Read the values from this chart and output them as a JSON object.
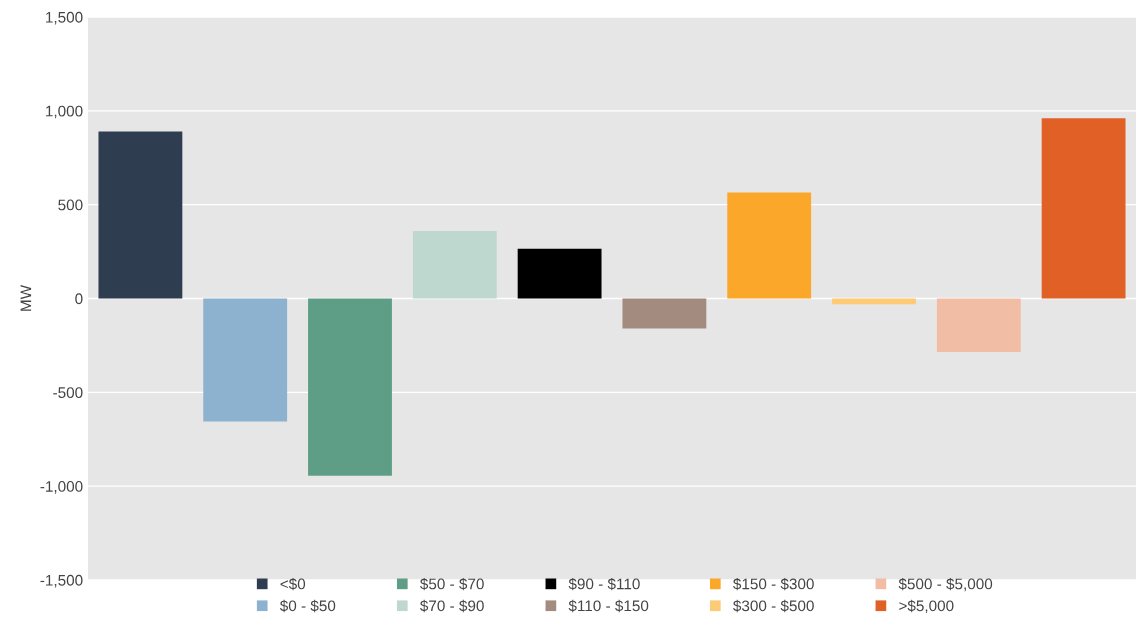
{
  "chart_data": {
    "type": "bar",
    "ylabel": "MW",
    "categories": [
      null
    ],
    "series": [
      {
        "name": "<$0",
        "color": "#2e3d50",
        "values": [
          890
        ]
      },
      {
        "name": "$0 - $50",
        "color": "#8cb2d0",
        "values": [
          -655
        ]
      },
      {
        "name": "$50 - $70",
        "color": "#5e9e87",
        "values": [
          -945
        ]
      },
      {
        "name": "$70 - $90",
        "color": "#bfd8cf",
        "values": [
          360
        ]
      },
      {
        "name": "$90 - $110",
        "color": "#000000",
        "values": [
          265
        ]
      },
      {
        "name": "$110 - $150",
        "color": "#a48b80",
        "values": [
          -160
        ]
      },
      {
        "name": "$150 - $300",
        "color": "#fba72a",
        "values": [
          565
        ]
      },
      {
        "name": "$300 - $500",
        "color": "#fdcb75",
        "values": [
          -30
        ]
      },
      {
        "name": "$500 - $5,000",
        "color": "#f1bda4",
        "values": [
          -285
        ]
      },
      {
        "name": ">$5,000",
        "color": "#e06026",
        "values": [
          960
        ]
      }
    ],
    "ylim": [
      -1500,
      1500
    ],
    "yticks": [
      {
        "value": -1500,
        "label": "-1,500"
      },
      {
        "value": -1000,
        "label": "-1,000"
      },
      {
        "value": -500,
        "label": "-500"
      },
      0,
      500,
      {
        "value": 1000,
        "label": "1,000"
      },
      {
        "value": 1500,
        "label": "1,500"
      }
    ],
    "grid": "y",
    "legend": "bottom"
  }
}
